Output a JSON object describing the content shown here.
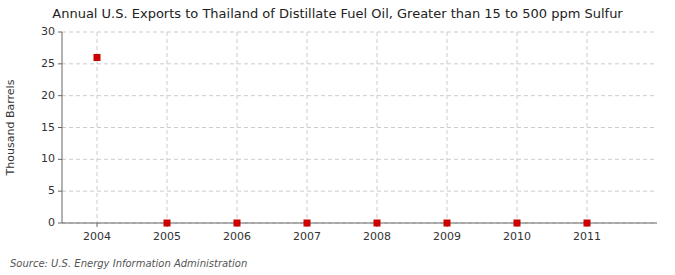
{
  "chart_data": {
    "type": "scatter",
    "title": "Annual U.S. Exports to Thailand of Distillate Fuel Oil, Greater than 15 to 500 ppm Sulfur",
    "y_label": "Thousand Barrels",
    "source": "Source: U.S. Energy Information Administration",
    "x": [
      2004,
      2005,
      2006,
      2007,
      2008,
      2009,
      2010,
      2011
    ],
    "values": [
      26.0,
      0.0,
      0.0,
      0.0,
      0.0,
      0.0,
      0.0,
      0.0
    ],
    "xlim": [
      2003.5,
      2012.0
    ],
    "xticks": [
      2004,
      2005,
      2006,
      2007,
      2008,
      2009,
      2010,
      2011
    ],
    "ylim": [
      0,
      30
    ],
    "yticks": [
      0,
      5,
      10,
      15,
      20,
      25,
      30
    ],
    "grid": true,
    "color": "#cc0000",
    "marker": "square"
  }
}
